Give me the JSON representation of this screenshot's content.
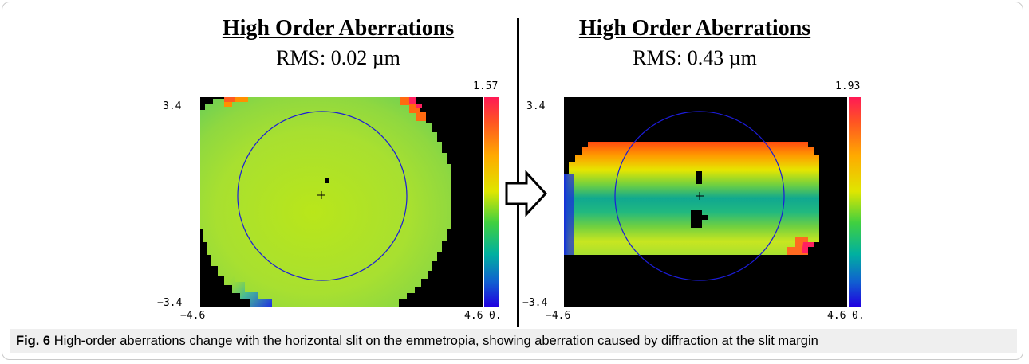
{
  "left_panel": {
    "title": "High Order Aberrations",
    "rms": "RMS: 0.02 µm",
    "scale_max": "1.57",
    "scale_min": "0.",
    "y_top": "3.4",
    "y_bottom": "−3.4",
    "x_left": "−4.6",
    "x_right": "4.6",
    "pupil_map": "nearly uniform yellow-green wavefront with red upper corners and blue lower-left edge"
  },
  "right_panel": {
    "title": "High Order Aberrations",
    "rms": "RMS: 0.43 µm",
    "scale_max": "1.93",
    "scale_min": "0.",
    "y_top": "3.4",
    "y_bottom": "−3.4",
    "x_left": "−4.6",
    "x_right": "4.6",
    "pupil_map": "horizontal slit-shaped wavefront, red/orange top band, teal center band, blue left edge"
  },
  "caption": {
    "label": "Fig. 6",
    "text": "High-order aberrations change with the horizontal slit on the emmetropia, showing aberration caused by diffraction at the slit margin"
  },
  "colors": {
    "background_map": "#000000",
    "pupil_circle": "#1c1cd8",
    "caption_bg": "#efefef"
  }
}
